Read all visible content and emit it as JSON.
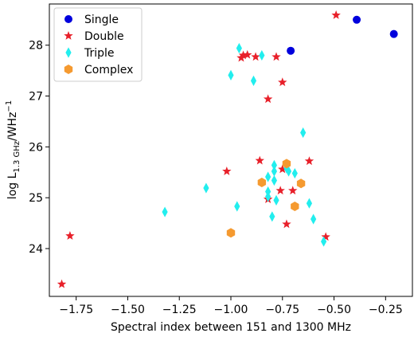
{
  "chart_data": {
    "type": "scatter",
    "xlabel": "Spectral index between 151 and 1300 MHz",
    "ylabel": {
      "main": "log L",
      "sub": "1.3 GHz",
      "unit": "/WHz",
      "sup": "−1"
    },
    "xlim": [
      -1.88,
      -0.12
    ],
    "ylim": [
      23.06,
      28.81
    ],
    "xticks": [
      {
        "value": -1.75,
        "label": "−1.75"
      },
      {
        "value": -1.5,
        "label": "−1.50"
      },
      {
        "value": -1.25,
        "label": "−1.25"
      },
      {
        "value": -1.0,
        "label": "−1.00"
      },
      {
        "value": -0.75,
        "label": "−0.75"
      },
      {
        "value": -0.5,
        "label": "−0.50"
      },
      {
        "value": -0.25,
        "label": "−0.25"
      }
    ],
    "yticks": [
      24,
      25,
      26,
      27,
      28
    ],
    "legend": "upper left",
    "series": [
      {
        "name": "Single",
        "color": "#0000dd",
        "marker": "circle",
        "x": [
          -0.71,
          -0.39,
          -0.21
        ],
        "values": [
          27.89,
          28.5,
          28.22
        ]
      },
      {
        "name": "Double",
        "color": "#e8202a",
        "marker": "star",
        "x": [
          -0.49,
          -0.94,
          -0.92,
          -0.95,
          -0.88,
          -0.78,
          -0.75,
          -0.82,
          -0.86,
          -1.02,
          -0.75,
          -0.62,
          -0.76,
          -0.7,
          -0.82,
          -0.73,
          -0.54,
          -1.78,
          -1.82
        ],
        "values": [
          28.59,
          27.8,
          27.81,
          27.75,
          27.77,
          27.77,
          27.27,
          26.94,
          25.73,
          25.52,
          25.56,
          25.72,
          25.14,
          25.14,
          24.97,
          24.48,
          24.23,
          24.25,
          23.3
        ]
      },
      {
        "name": "Triple",
        "color": "#22eeee",
        "marker": "diamond",
        "x": [
          -0.96,
          -0.85,
          -1.0,
          -0.89,
          -0.65,
          -0.79,
          -0.79,
          -0.73,
          -0.72,
          -0.69,
          -0.82,
          -0.79,
          -1.12,
          -0.82,
          -0.82,
          -0.97,
          -0.62,
          -0.78,
          -0.8,
          -0.6,
          -1.32,
          -0.55
        ],
        "values": [
          27.94,
          27.8,
          27.41,
          27.3,
          26.28,
          25.64,
          25.52,
          25.58,
          25.52,
          25.48,
          25.41,
          25.34,
          25.19,
          25.12,
          25.02,
          24.83,
          24.89,
          24.95,
          24.63,
          24.58,
          24.72,
          24.14
        ]
      },
      {
        "name": "Complex",
        "color": "#f59a30",
        "marker": "hexagon",
        "x": [
          -0.73,
          -0.85,
          -0.66,
          -0.69,
          -1.0
        ],
        "values": [
          25.67,
          25.3,
          25.28,
          24.83,
          24.31
        ]
      }
    ]
  }
}
